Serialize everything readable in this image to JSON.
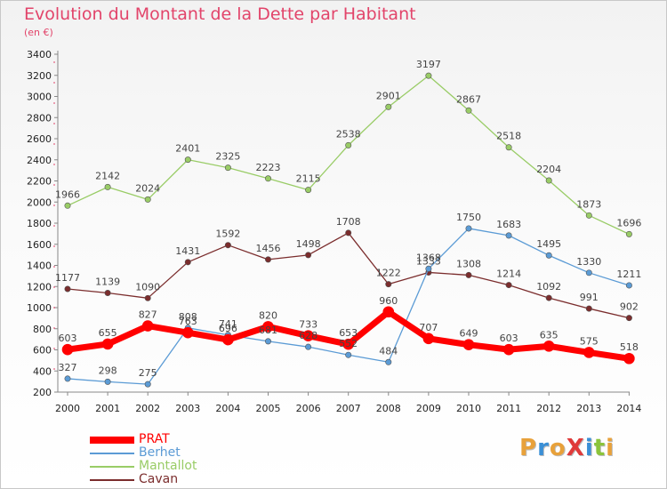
{
  "header": {
    "title": "Evolution du Montant de la Dette par Habitant",
    "unit": "(en €)"
  },
  "logo": {
    "text": "ProXiti",
    "colors": [
      "#e8a13a",
      "#3a8fd6",
      "#e8a13a",
      "#e03a3a",
      "#3a8fd6",
      "#8bc43a",
      "#e8a13a"
    ]
  },
  "chart_data": {
    "type": "line",
    "title": "Evolution du Montant de la Dette par Habitant",
    "ylabel": "(en €)",
    "xlabel": "",
    "ylim": [
      200,
      3400
    ],
    "yticks": [
      200,
      400,
      600,
      800,
      1000,
      1200,
      1400,
      1600,
      1800,
      2000,
      2200,
      2400,
      2600,
      2800,
      3000,
      3200,
      3400
    ],
    "x": [
      "2000",
      "2001",
      "2002",
      "2003",
      "2004",
      "2005",
      "2006",
      "2007",
      "2008",
      "2009",
      "2010",
      "2011",
      "2012",
      "2013",
      "2014"
    ],
    "grid": false,
    "legend": "bottom-left",
    "series": [
      {
        "name": "Mantallot",
        "color": "#99cc66",
        "values": [
          1966,
          2142,
          2024,
          2401,
          2325,
          2223,
          2115,
          2538,
          2901,
          3197,
          2867,
          2518,
          2204,
          1873,
          1696
        ]
      },
      {
        "name": "Cavan",
        "color": "#7b2d2d",
        "values": [
          1177,
          1139,
          1090,
          1431,
          1592,
          1456,
          1498,
          1708,
          1222,
          1333,
          1308,
          1214,
          1092,
          991,
          902
        ]
      },
      {
        "name": "Berhet",
        "color": "#5b9bd5",
        "values": [
          327,
          298,
          275,
          808,
          741,
          681,
          628,
          552,
          484,
          1368,
          1750,
          1683,
          1495,
          1330,
          1211
        ]
      },
      {
        "name": "PRAT",
        "color": "#ff0000",
        "values": [
          603,
          655,
          827,
          763,
          696,
          820,
          733,
          653,
          960,
          707,
          649,
          603,
          635,
          575,
          518
        ]
      }
    ],
    "legend_order": [
      "PRAT",
      "Berhet",
      "Mantallot",
      "Cavan"
    ]
  }
}
